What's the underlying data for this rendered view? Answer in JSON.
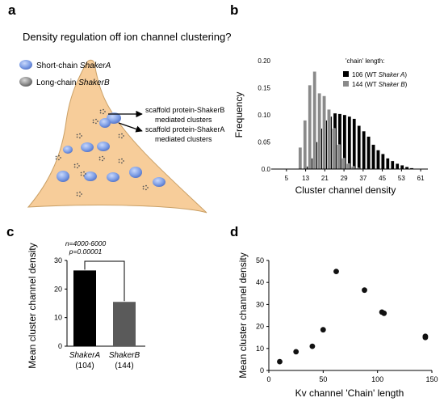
{
  "panel_a": {
    "letter": "a",
    "title": "Density regulation off ion channel clustering?",
    "legend": [
      {
        "prefix": "Short-chain ",
        "gene": "ShakerA",
        "color": "#7f9fe6"
      },
      {
        "prefix": "Long-chain ",
        "gene": "ShakerB",
        "color": "#909090"
      }
    ],
    "callout_b": [
      "scaffold protein-ShakerB",
      "mediated clusters"
    ],
    "callout_a": [
      "scaffold protein-ShakerA",
      "mediated clusters"
    ],
    "cell_color": "#f7cd9a"
  },
  "panel_b": {
    "letter": "b"
  },
  "panel_c": {
    "letter": "c",
    "annotation_n": "n=4000-6000",
    "annotation_p": "p=0.00001"
  },
  "panel_d": {
    "letter": "d"
  },
  "chart_data": [
    {
      "panel": "b",
      "type": "bar",
      "xlabel": "Cluster channel density",
      "ylabel": "Frequency",
      "ylim": [
        0,
        0.2
      ],
      "yticks": [
        "0.0",
        "0.05",
        "0.10",
        "0.15",
        "0.20"
      ],
      "xticks": [
        5,
        13,
        21,
        29,
        37,
        45,
        53,
        61
      ],
      "legend_title": "'chain' length:",
      "legend_position": "top-right",
      "x": [
        1,
        3,
        5,
        7,
        9,
        11,
        13,
        15,
        17,
        19,
        21,
        23,
        25,
        27,
        29,
        31,
        33,
        35,
        37,
        39,
        41,
        43,
        45,
        47,
        49,
        51,
        53,
        55,
        57,
        59,
        61,
        63
      ],
      "series": [
        {
          "name": "106 (WT Shaker A)",
          "num": "106",
          "gene": "Shaker A",
          "color": "#000000",
          "values": [
            0,
            0,
            0,
            0,
            0,
            0,
            0.005,
            0.02,
            0.05,
            0.075,
            0.09,
            0.097,
            0.103,
            0.102,
            0.1,
            0.097,
            0.093,
            0.08,
            0.07,
            0.06,
            0.045,
            0.035,
            0.028,
            0.02,
            0.015,
            0.01,
            0.007,
            0.004,
            0.002,
            0,
            0,
            0
          ]
        },
        {
          "name": "144 (WT Shaker B)",
          "num": "144",
          "gene": "Shaker B",
          "color": "#8a8a8a",
          "values": [
            0,
            0,
            0,
            0,
            0,
            0.04,
            0.09,
            0.155,
            0.18,
            0.14,
            0.135,
            0.11,
            0.075,
            0.045,
            0.02,
            0.01,
            0.005,
            0.002,
            0,
            0,
            0,
            0,
            0,
            0,
            0,
            0,
            0,
            0,
            0,
            0,
            0,
            0
          ]
        }
      ]
    },
    {
      "panel": "c",
      "type": "bar",
      "ylabel": "Mean cluster channel density",
      "ylim": [
        0,
        30
      ],
      "yticks": [
        0,
        10,
        20,
        30
      ],
      "categories": [
        {
          "name": "ShakerA",
          "n": "(104)",
          "value": 26.5,
          "color": "#000000"
        },
        {
          "name": "ShakerB",
          "n": "(144)",
          "value": 15.5,
          "color": "#5a5a5a"
        }
      ]
    },
    {
      "panel": "d",
      "type": "scatter",
      "xlabel": "Kv channel 'Chain' length",
      "ylabel": "Mean cluster channel density",
      "xlim": [
        0,
        150
      ],
      "ylim": [
        0,
        50
      ],
      "xticks": [
        0,
        50,
        100,
        150
      ],
      "yticks": [
        0,
        10,
        20,
        30,
        40,
        50
      ],
      "x": [
        10,
        25,
        40,
        50,
        62,
        88,
        104,
        106,
        144,
        144
      ],
      "y": [
        4,
        8.5,
        11,
        18.5,
        45,
        36.5,
        26.5,
        26,
        15.5,
        15
      ]
    }
  ]
}
